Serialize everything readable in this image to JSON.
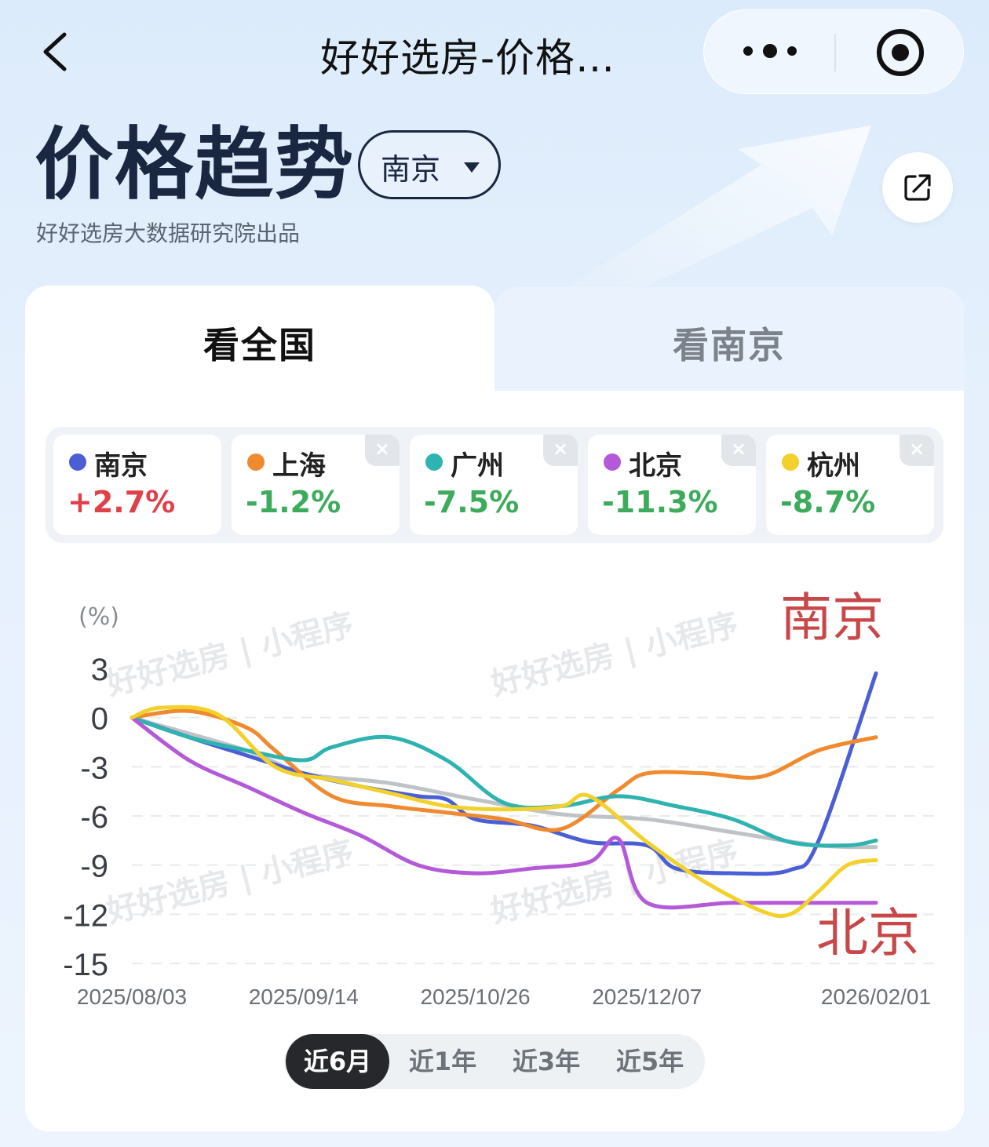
{
  "nav": {
    "title": "好好选房-价格…"
  },
  "header": {
    "title": "价格趋势",
    "city": "南京",
    "subtitle": "好好选房大数据研究院出品"
  },
  "tabs": [
    {
      "label": "看全国",
      "active": true
    },
    {
      "label": "看南京",
      "active": false
    }
  ],
  "legend": [
    {
      "name": "南京",
      "change": "+2.7%",
      "color": "#4a5fd6",
      "value_color": "#e0404a",
      "closable": false
    },
    {
      "name": "上海",
      "change": "-1.2%",
      "color": "#ef8a2e",
      "value_color": "#3dab5c",
      "closable": true
    },
    {
      "name": "广州",
      "change": "-7.5%",
      "color": "#2fb3b0",
      "value_color": "#3dab5c",
      "closable": true
    },
    {
      "name": "北京",
      "change": "-11.3%",
      "color": "#b45ad8",
      "value_color": "#3dab5c",
      "closable": true
    },
    {
      "name": "杭州",
      "change": "-8.7%",
      "color": "#f2d12c",
      "value_color": "#3dab5c",
      "closable": true
    }
  ],
  "close_glyph": "×",
  "watermark": [
    "好好选房",
    "小程序"
  ],
  "annotations": {
    "top": "南京",
    "bottom": "北京"
  },
  "chart_data": {
    "type": "line",
    "ylabel": "(%)",
    "ylim": [
      -15,
      3
    ],
    "yticks": [
      3,
      0,
      -3,
      -6,
      -9,
      -12,
      -15
    ],
    "xticks": [
      "2025/08/03",
      "2025/09/14",
      "2025/10/26",
      "2025/12/07",
      "2026/02/01"
    ],
    "xrange": [
      "2025/08/03",
      "2026/02/01"
    ],
    "grid": "dashed horizontal",
    "series": [
      {
        "name": "南京",
        "color": "#4a5fd6",
        "points": [
          [
            "2025/08/03",
            0
          ],
          [
            "2025/08/17",
            -1.2
          ],
          [
            "2025/08/31",
            -2.3
          ],
          [
            "2025/09/14",
            -3.4
          ],
          [
            "2025/09/28",
            -4.2
          ],
          [
            "2025/10/12",
            -4.8
          ],
          [
            "2025/10/19",
            -5.0
          ],
          [
            "2025/10/26",
            -6.2
          ],
          [
            "2025/11/09",
            -6.6
          ],
          [
            "2025/11/23",
            -7.6
          ],
          [
            "2025/12/07",
            -7.8
          ],
          [
            "2025/12/14",
            -9.2
          ],
          [
            "2025/12/28",
            -9.5
          ],
          [
            "2026/01/11",
            -9.3
          ],
          [
            "2026/01/18",
            -7.5
          ],
          [
            "2026/02/01",
            2.7
          ]
        ]
      },
      {
        "name": "上海",
        "color": "#ef8a2e",
        "points": [
          [
            "2025/08/03",
            0
          ],
          [
            "2025/08/17",
            0.4
          ],
          [
            "2025/08/31",
            -0.6
          ],
          [
            "2025/09/07",
            -2.0
          ],
          [
            "2025/09/21",
            -4.8
          ],
          [
            "2025/10/05",
            -5.4
          ],
          [
            "2025/10/19",
            -5.8
          ],
          [
            "2025/11/02",
            -6.2
          ],
          [
            "2025/11/16",
            -6.8
          ],
          [
            "2025/11/30",
            -4.4
          ],
          [
            "2025/12/07",
            -3.4
          ],
          [
            "2025/12/21",
            -3.4
          ],
          [
            "2026/01/04",
            -3.6
          ],
          [
            "2026/01/18",
            -2.0
          ],
          [
            "2026/02/01",
            -1.2
          ]
        ]
      },
      {
        "name": "广州",
        "color": "#2fb3b0",
        "points": [
          [
            "2025/08/03",
            0
          ],
          [
            "2025/08/17",
            -1.2
          ],
          [
            "2025/08/31",
            -2.0
          ],
          [
            "2025/09/14",
            -2.6
          ],
          [
            "2025/09/21",
            -1.8
          ],
          [
            "2025/10/05",
            -1.2
          ],
          [
            "2025/10/19",
            -2.6
          ],
          [
            "2025/11/02",
            -5.2
          ],
          [
            "2025/11/16",
            -5.4
          ],
          [
            "2025/11/30",
            -4.8
          ],
          [
            "2025/12/14",
            -5.4
          ],
          [
            "2025/12/28",
            -6.2
          ],
          [
            "2026/01/11",
            -7.6
          ],
          [
            "2026/01/25",
            -7.8
          ],
          [
            "2026/02/01",
            -7.5
          ]
        ]
      },
      {
        "name": "北京",
        "color": "#b45ad8",
        "points": [
          [
            "2025/08/03",
            0
          ],
          [
            "2025/08/17",
            -2.6
          ],
          [
            "2025/08/31",
            -4.2
          ],
          [
            "2025/09/14",
            -5.8
          ],
          [
            "2025/09/28",
            -7.2
          ],
          [
            "2025/10/12",
            -9.0
          ],
          [
            "2025/10/26",
            -9.5
          ],
          [
            "2025/11/09",
            -9.2
          ],
          [
            "2025/11/23",
            -8.8
          ],
          [
            "2025/11/30",
            -7.4
          ],
          [
            "2025/12/07",
            -11.3
          ],
          [
            "2025/12/28",
            -11.3
          ],
          [
            "2026/01/18",
            -11.3
          ],
          [
            "2026/02/01",
            -11.3
          ]
        ]
      },
      {
        "name": "杭州",
        "color": "#f2d12c",
        "points": [
          [
            "2025/08/03",
            0
          ],
          [
            "2025/08/10",
            0.6
          ],
          [
            "2025/08/24",
            0.2
          ],
          [
            "2025/09/07",
            -3.0
          ],
          [
            "2025/09/21",
            -3.8
          ],
          [
            "2025/10/05",
            -4.6
          ],
          [
            "2025/10/19",
            -5.4
          ],
          [
            "2025/11/02",
            -5.6
          ],
          [
            "2025/11/16",
            -5.4
          ],
          [
            "2025/11/23",
            -4.8
          ],
          [
            "2025/12/07",
            -7.6
          ],
          [
            "2025/12/21",
            -10.0
          ],
          [
            "2026/01/04",
            -11.8
          ],
          [
            "2026/01/11",
            -12.0
          ],
          [
            "2026/01/18",
            -10.6
          ],
          [
            "2026/01/25",
            -9.0
          ],
          [
            "2026/02/01",
            -8.7
          ]
        ]
      },
      {
        "name": "全国",
        "color": "#bfc2c6",
        "points": [
          [
            "2025/08/03",
            0
          ],
          [
            "2025/08/31",
            -2.0
          ],
          [
            "2025/09/14",
            -3.4
          ],
          [
            "2025/10/05",
            -4.0
          ],
          [
            "2025/10/26",
            -5.0
          ],
          [
            "2025/11/16",
            -5.9
          ],
          [
            "2025/12/07",
            -6.2
          ],
          [
            "2025/12/28",
            -7.0
          ],
          [
            "2026/01/18",
            -7.8
          ],
          [
            "2026/02/01",
            -7.9
          ]
        ]
      }
    ]
  },
  "ranges": [
    {
      "label": "近6月",
      "active": true
    },
    {
      "label": "近1年",
      "active": false
    },
    {
      "label": "近3年",
      "active": false
    },
    {
      "label": "近5年",
      "active": false
    }
  ]
}
